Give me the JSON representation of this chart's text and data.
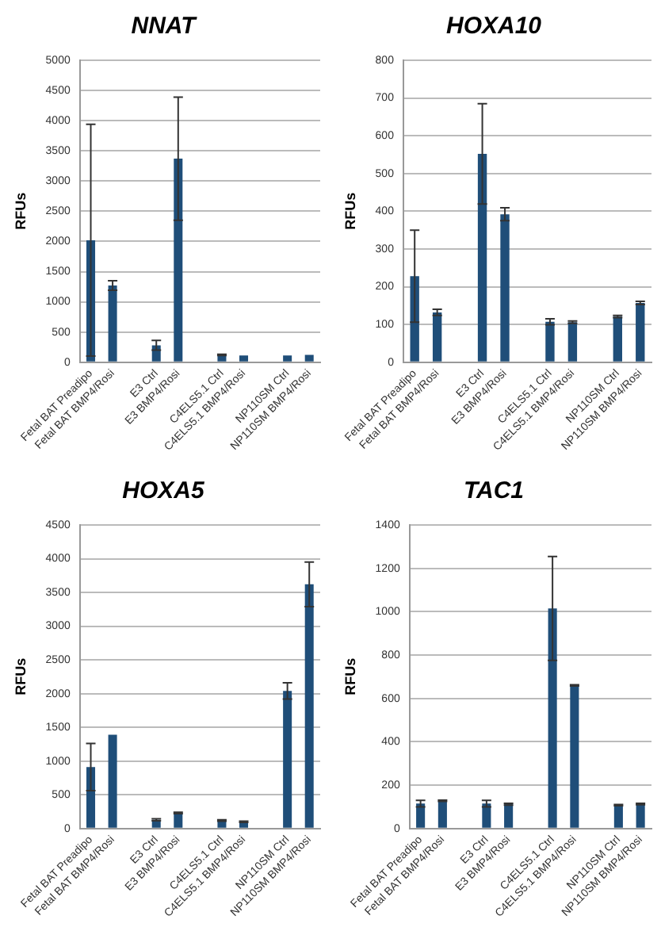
{
  "chart_data": [
    {
      "type": "bar",
      "title": "NNAT",
      "ylabel": "RFUs",
      "categories": [
        "Fetal BAT Preadipo",
        "Fetal BAT BMP4/Rosi",
        null,
        "E3 Ctrl",
        "E3 BMP4/Rosi",
        null,
        "C4ELS5.1 Ctrl",
        "C4ELS5.1 BMP4/Rosi",
        null,
        "NP110SM Ctrl",
        "NP110SM BMP4/Rosi"
      ],
      "color": "#1f4e79",
      "values": [
        2020,
        1270,
        null,
        280,
        3370,
        null,
        120,
        110,
        null,
        110,
        120
      ],
      "errors": [
        1920,
        80,
        null,
        80,
        1020,
        null,
        10,
        null,
        null,
        null,
        null
      ],
      "ylim": [
        0,
        5000
      ],
      "yticks": [
        0,
        500,
        1000,
        1500,
        2000,
        2500,
        3000,
        3500,
        4000,
        4500,
        5000
      ],
      "grid": "y",
      "legend": false
    },
    {
      "type": "bar",
      "title": "HOXA10",
      "ylabel": "RFUs",
      "categories": [
        "Fetal BAT Preadipo",
        "Fetal BAT BMP4/Rosi",
        null,
        "E3 Ctrl",
        "E3 BMP4/Rosi",
        null,
        "C4ELS5.1 Ctrl",
        "C4ELS5.1 BMP4/Rosi",
        null,
        "NP110SM Ctrl",
        "NP110SM BMP4/Rosi"
      ],
      "color": "#1f4e79",
      "values": [
        228,
        132,
        null,
        552,
        392,
        null,
        107,
        106,
        null,
        121,
        157
      ],
      "errors": [
        122,
        8,
        null,
        133,
        17,
        null,
        8,
        3,
        null,
        3,
        4
      ],
      "ylim": [
        0,
        800
      ],
      "yticks": [
        0,
        100,
        200,
        300,
        400,
        500,
        600,
        700,
        800
      ],
      "grid": "y",
      "legend": false
    },
    {
      "type": "bar",
      "title": "HOXA5",
      "ylabel": "RFUs",
      "categories": [
        "Fetal BAT Preadipo",
        "Fetal BAT BMP4/Rosi",
        null,
        "E3 Ctrl",
        "E3 BMP4/Rosi",
        null,
        "C4ELS5.1 Ctrl",
        "C4ELS5.1 BMP4/Rosi",
        null,
        "NP110SM Ctrl",
        "NP110SM BMP4/Rosi"
      ],
      "color": "#1f4e79",
      "values": [
        910,
        1390,
        null,
        130,
        230,
        null,
        120,
        100,
        null,
        2040,
        3620
      ],
      "errors": [
        350,
        null,
        null,
        15,
        10,
        null,
        10,
        8,
        null,
        120,
        330
      ],
      "ylim": [
        0,
        4500
      ],
      "yticks": [
        0,
        500,
        1000,
        1500,
        2000,
        2500,
        3000,
        3500,
        4000,
        4500
      ],
      "grid": "y",
      "legend": false
    },
    {
      "type": "bar",
      "title": "TAC1",
      "ylabel": "RFUs",
      "categories": [
        "Fetal BAT Preadipo",
        "Fetal BAT BMP4/Rosi",
        null,
        "E3 Ctrl",
        "E3 BMP4/Rosi",
        null,
        "C4ELS5.1 Ctrl",
        "C4ELS5.1 BMP4/Rosi",
        null,
        "NP110SM Ctrl",
        "NP110SM BMP4/Rosi"
      ],
      "color": "#1f4e79",
      "values": [
        115,
        128,
        null,
        115,
        112,
        null,
        1015,
        660,
        null,
        108,
        113
      ],
      "errors": [
        15,
        3,
        null,
        15,
        4,
        null,
        240,
        3,
        null,
        3,
        3
      ],
      "ylim": [
        0,
        1400
      ],
      "yticks": [
        0,
        200,
        400,
        600,
        800,
        1000,
        1200,
        1400
      ],
      "grid": "y",
      "legend": false
    }
  ]
}
